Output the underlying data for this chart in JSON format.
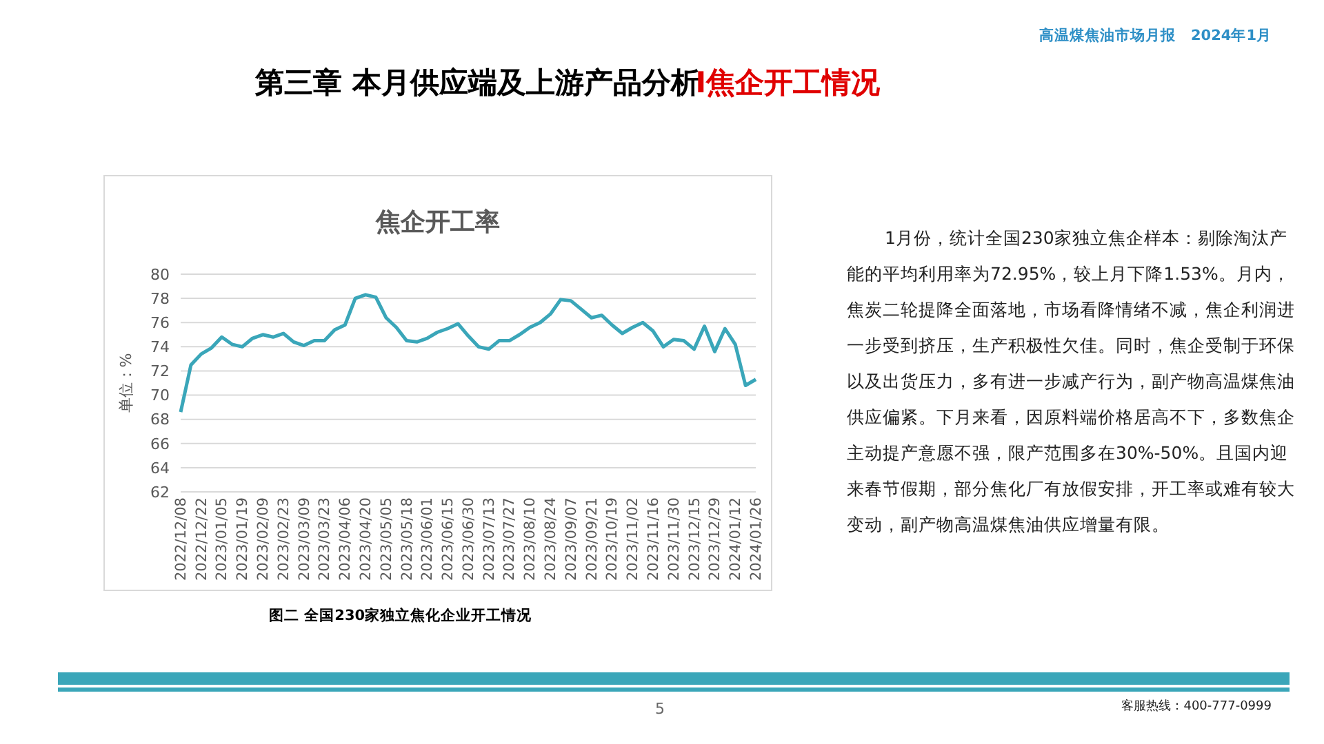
{
  "chart_data": {
    "type": "line",
    "title": "焦企开工率",
    "ylabel": "单位：%",
    "categories": [
      "2022/12/08",
      null,
      "2022/12/22",
      null,
      "2023/01/05",
      null,
      "2023/01/19",
      null,
      "2023/02/09",
      null,
      "2023/02/23",
      null,
      "2023/03/09",
      null,
      "2023/03/23",
      null,
      "2023/04/06",
      null,
      "2023/04/20",
      null,
      "2023/05/05",
      null,
      "2023/05/18",
      null,
      "2023/06/01",
      null,
      "2023/06/15",
      null,
      "2023/06/30",
      null,
      "2023/07/13",
      null,
      "2023/07/27",
      null,
      "2023/08/10",
      null,
      "2023/08/24",
      null,
      "2023/09/07",
      null,
      "2023/09/21",
      null,
      "2023/10/19",
      null,
      "2023/11/02",
      null,
      "2023/11/16",
      null,
      "2023/11/30",
      null,
      "2023/12/15",
      null,
      "2023/12/29",
      null,
      "2024/01/12",
      null,
      "2024/01/26"
    ],
    "series": [
      {
        "color": "#3aa6b9",
        "values": [
          68.6,
          72.5,
          73.4,
          73.9,
          74.8,
          74.2,
          74.0,
          74.7,
          75.0,
          74.8,
          75.1,
          74.4,
          74.1,
          74.5,
          74.5,
          75.4,
          75.8,
          78.0,
          78.3,
          78.1,
          76.4,
          75.6,
          74.5,
          74.4,
          74.7,
          75.2,
          75.5,
          75.9,
          74.9,
          74.0,
          73.8,
          74.5,
          74.5,
          75.0,
          75.6,
          76.0,
          76.7,
          77.9,
          77.8,
          77.1,
          76.4,
          76.6,
          75.8,
          75.1,
          75.6,
          76.0,
          75.3,
          74.0,
          74.6,
          74.5,
          73.8,
          75.7,
          73.6,
          75.5,
          74.2,
          70.8,
          71.3
        ]
      }
    ],
    "ylim": [
      62,
      80
    ],
    "yticks": [
      62,
      64,
      66,
      68,
      70,
      72,
      74,
      76,
      78,
      80
    ],
    "grid": "y",
    "legend": false,
    "marker": "none",
    "line_style": "solid",
    "annotations": [
      "第三章 本月供应端及上游产品分析",
      "I焦企开工情况",
      "高温煤焦油市场月报　2024年1月",
      "图二 全国230家独立焦化企业开工情况",
      "1月份，统计全国230家独立焦企样本：剔除淘汰产能的平均利用率为72.95%，较上月下降1.53%。月内，焦炭二轮提降全面落地，市场看降情绪不减，焦企利润进一步受到挤压，生产积极性欠佳。同时，焦企受制于环保以及出货压力，多有进一步减产行为，副产物高温煤焦油供应偏紧。下月来看，因原料端价格居高不下，多数焦企主动提产意愿不强，限产范围多在30%-50%。且国内迎来春节假期，部分焦化厂有放假安排，开工率或难有较大变动，副产物高温煤焦油供应增量有限。",
      "客服热线：400-777-0999",
      "5"
    ]
  }
}
